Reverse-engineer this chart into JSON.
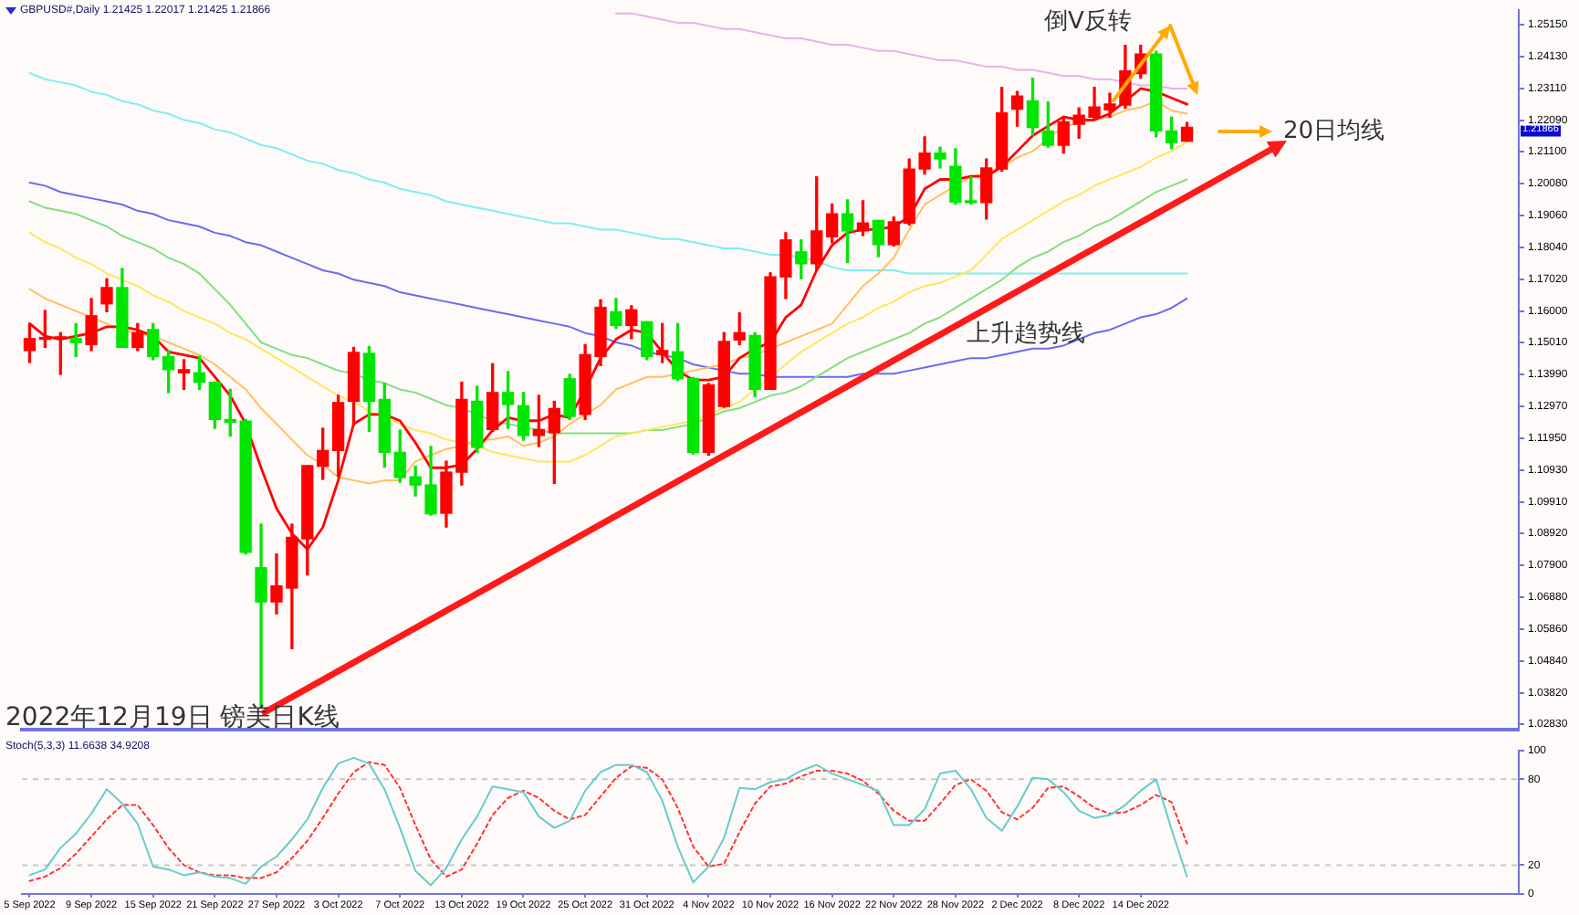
{
  "chart_data": [
    {
      "type": "candlestick",
      "title": "GBPUSD#,Daily  1.21425 1.22017 1.21425 1.21866",
      "categories": [
        null,
        null,
        null,
        null,
        null,
        null,
        null,
        null,
        null,
        null,
        null,
        null,
        null,
        null,
        null,
        null,
        null,
        null,
        null,
        null,
        null,
        null,
        null,
        null,
        null,
        null,
        null,
        null,
        null,
        null,
        null,
        null,
        null,
        null,
        null,
        null,
        null,
        null,
        null,
        null,
        null,
        null,
        null,
        null,
        null,
        null,
        null,
        null,
        null,
        null,
        null,
        null,
        null,
        null,
        null,
        null,
        null,
        null,
        null,
        null,
        null,
        null,
        null,
        null,
        null,
        null,
        null,
        null,
        null,
        null,
        null,
        null,
        null,
        null,
        null,
        null
      ],
      "ohlc": [
        [
          1.1474,
          1.156,
          1.1436,
          1.1512
        ],
        [
          1.151,
          1.1602,
          1.1484,
          1.1514
        ],
        [
          1.1512,
          1.1531,
          1.1398,
          1.1514
        ],
        [
          1.1512,
          1.156,
          1.1455,
          1.1499
        ],
        [
          1.1493,
          1.164,
          1.1474,
          1.1585
        ],
        [
          1.1623,
          1.1703,
          1.1598,
          1.1675
        ],
        [
          1.1675,
          1.1736,
          1.1484,
          1.1484
        ],
        [
          1.1484,
          1.156,
          1.1474,
          1.1531
        ],
        [
          1.1541,
          1.156,
          1.1445,
          1.1455
        ],
        [
          1.1455,
          1.1474,
          1.134,
          1.1413
        ],
        [
          1.1403,
          1.1445,
          1.135,
          1.1413
        ],
        [
          1.1403,
          1.1455,
          1.135,
          1.1373
        ],
        [
          1.1373,
          1.1373,
          1.1226,
          1.1254
        ],
        [
          1.1254,
          1.135,
          1.1201,
          1.1245
        ],
        [
          1.1249,
          1.1254,
          1.0825,
          1.083
        ],
        [
          1.0781,
          1.092,
          1.0338,
          1.0672
        ],
        [
          1.0672,
          1.0825,
          1.0634,
          1.0723
        ],
        [
          1.0716,
          1.092,
          1.0523,
          1.0878
        ],
        [
          1.0873,
          1.1107,
          1.0758,
          1.1107
        ],
        [
          1.1105,
          1.1226,
          1.1063,
          1.1155
        ],
        [
          1.1155,
          1.1331,
          1.1073,
          1.1308
        ],
        [
          1.1312,
          1.1484,
          1.1235,
          1.1468
        ],
        [
          1.1465,
          1.1487,
          1.1216,
          1.1312
        ],
        [
          1.1318,
          1.1369,
          1.1102,
          1.1149
        ],
        [
          1.1149,
          1.122,
          1.1054,
          1.1069
        ],
        [
          1.1071,
          1.1105,
          1.101,
          1.1045
        ],
        [
          1.1045,
          1.1168,
          1.0949,
          1.0953
        ],
        [
          1.0955,
          1.1121,
          1.0911,
          1.1086
        ],
        [
          1.1086,
          1.1373,
          1.1045,
          1.1318
        ],
        [
          1.1312,
          1.136,
          1.1149,
          1.1165
        ],
        [
          1.1222,
          1.1432,
          1.1216,
          1.134
        ],
        [
          1.134,
          1.1407,
          1.1226,
          1.1302
        ],
        [
          1.1298,
          1.134,
          1.1188,
          1.1203
        ],
        [
          1.1203,
          1.1331,
          1.1168,
          1.1222
        ],
        [
          1.1212,
          1.1312,
          1.105,
          1.1289
        ],
        [
          1.1384,
          1.1398,
          1.1254,
          1.1264
        ],
        [
          1.127,
          1.1493,
          1.1254,
          1.1461
        ],
        [
          1.1455,
          1.1636,
          1.1426,
          1.1612
        ],
        [
          1.1598,
          1.164,
          1.1545,
          1.1554
        ],
        [
          1.1554,
          1.1617,
          1.1512,
          1.1604
        ],
        [
          1.1566,
          1.1566,
          1.1445,
          1.1455
        ],
        [
          1.1461,
          1.156,
          1.1436,
          1.1474
        ],
        [
          1.147,
          1.156,
          1.1379,
          1.1384
        ],
        [
          1.1384,
          1.1388,
          1.1144,
          1.1149
        ],
        [
          1.1149,
          1.1369,
          1.114,
          1.1365
        ],
        [
          1.1296,
          1.1531,
          1.1293,
          1.1503
        ],
        [
          1.1508,
          1.1594,
          1.1493,
          1.1531
        ],
        [
          1.1522,
          1.1531,
          1.1327,
          1.135
        ],
        [
          1.135,
          1.1722,
          1.135,
          1.1709
        ],
        [
          1.1709,
          1.185,
          1.164,
          1.1827
        ],
        [
          1.1789,
          1.1827,
          1.1703,
          1.1751
        ],
        [
          1.1751,
          1.2028,
          1.1732,
          1.1856
        ],
        [
          1.1837,
          1.1942,
          1.1818,
          1.191
        ],
        [
          1.191,
          1.1955,
          1.1755,
          1.1856
        ],
        [
          1.1856,
          1.1952,
          1.1841,
          1.1881
        ],
        [
          1.1889,
          1.1889,
          1.1774,
          1.1812
        ],
        [
          1.1812,
          1.19,
          1.1808,
          1.1885
        ],
        [
          1.1881,
          1.2085,
          1.1875,
          1.2053
        ],
        [
          1.2053,
          1.2156,
          1.2037,
          1.2104
        ],
        [
          1.2104,
          1.2123,
          1.2057,
          1.2085
        ],
        [
          1.2062,
          1.2118,
          1.1942,
          1.1948
        ],
        [
          1.1952,
          1.2028,
          1.1942,
          1.1946
        ],
        [
          1.1946,
          1.2085,
          1.1894,
          1.2057
        ],
        [
          1.2053,
          1.2314,
          1.2047,
          1.2232
        ],
        [
          1.2244,
          1.2301,
          1.219,
          1.2286
        ],
        [
          1.2271,
          1.2343,
          1.2162,
          1.2186
        ],
        [
          1.2175,
          1.2267,
          1.2123,
          1.2129
        ],
        [
          1.2129,
          1.2219,
          1.2104,
          1.2204
        ],
        [
          1.2196,
          1.2248,
          1.2152,
          1.2225
        ],
        [
          1.2219,
          1.2314,
          1.2209,
          1.2251
        ],
        [
          1.2242,
          1.2295,
          1.2219,
          1.2261
        ],
        [
          1.2257,
          1.2448,
          1.2248,
          1.2366
        ],
        [
          1.2358,
          1.2448,
          1.2343,
          1.242
        ],
        [
          1.242,
          1.2429,
          1.2156,
          1.2175
        ],
        [
          1.2175,
          1.2219,
          1.2118,
          1.2137
        ],
        [
          1.21425,
          1.22017,
          1.21425,
          1.21866
        ]
      ],
      "colors": [
        "#ff0000",
        "#ff0000",
        "#ff0000",
        "#00e600",
        "#ff0000",
        "#ff0000",
        "#00e600",
        "#ff0000",
        "#00e600",
        "#00e600",
        "#ff0000",
        "#00e600",
        "#00e600",
        "#00e600",
        "#00e600",
        "#00e600",
        "#ff0000",
        "#ff0000",
        "#ff0000",
        "#ff0000",
        "#ff0000",
        "#ff0000",
        "#00e600",
        "#00e600",
        "#00e600",
        "#00e600",
        "#00e600",
        "#ff0000",
        "#ff0000",
        "#00e600",
        "#ff0000",
        "#00e600",
        "#00e600",
        "#ff0000",
        "#ff0000",
        "#00e600",
        "#ff0000",
        "#ff0000",
        "#00e600",
        "#ff0000",
        "#00e600",
        "#ff0000",
        "#00e600",
        "#00e600",
        "#ff0000",
        "#ff0000",
        "#ff0000",
        "#00e600",
        "#ff0000",
        "#ff0000",
        "#00e600",
        "#ff0000",
        "#ff0000",
        "#00e600",
        "#ff0000",
        "#00e600",
        "#ff0000",
        "#ff0000",
        "#ff0000",
        "#00e600",
        "#00e600",
        "#00e600",
        "#ff0000",
        "#ff0000",
        "#ff0000",
        "#00e600",
        "#00e600",
        "#ff0000",
        "#ff0000",
        "#ff0000",
        "#ff0000",
        "#ff0000",
        "#ff0000",
        "#00e600",
        "#00e600",
        "#ff0000"
      ],
      "series": [
        {
          "type": "line",
          "color": "#ff0000",
          "values": [
            1.156,
            1.152,
            1.151,
            1.152,
            1.153,
            1.155,
            1.155,
            1.154,
            1.152,
            1.147,
            1.146,
            1.145,
            1.139,
            1.133,
            1.124,
            1.11,
            1.097,
            1.089,
            1.084,
            1.091,
            1.106,
            1.124,
            1.127,
            1.127,
            1.125,
            1.118,
            1.11,
            1.11,
            1.111,
            1.116,
            1.122,
            1.126,
            1.125,
            1.125,
            1.127,
            1.126,
            1.135,
            1.145,
            1.151,
            1.154,
            1.153,
            1.147,
            1.141,
            1.138,
            1.138,
            1.139,
            1.145,
            1.148,
            1.15,
            1.158,
            1.162,
            1.173,
            1.181,
            1.185,
            1.186,
            1.186,
            1.187,
            1.19,
            1.199,
            1.202,
            1.202,
            1.203,
            1.203,
            1.206,
            1.211,
            1.216,
            1.219,
            1.222,
            1.221,
            1.221,
            1.223,
            1.227,
            1.231,
            1.23,
            1.228,
            1.226
          ]
        },
        {
          "type": "line",
          "color": "#ffc060",
          "values": [
            1.167,
            1.164,
            1.162,
            1.16,
            1.158,
            1.156,
            1.154,
            1.153,
            1.152,
            1.15,
            1.148,
            1.146,
            1.143,
            1.139,
            1.135,
            1.129,
            1.124,
            1.119,
            1.114,
            1.111,
            1.107,
            1.106,
            1.105,
            1.106,
            1.106,
            1.112,
            1.114,
            1.116,
            1.117,
            1.119,
            1.119,
            1.12,
            1.117,
            1.118,
            1.12,
            1.124,
            1.127,
            1.13,
            1.135,
            1.137,
            1.139,
            1.139,
            1.14,
            1.141,
            1.142,
            1.143,
            1.145,
            1.146,
            1.148,
            1.15,
            1.152,
            1.154,
            1.156,
            1.162,
            1.168,
            1.172,
            1.177,
            1.186,
            1.194,
            1.197,
            1.2,
            1.203,
            1.204,
            1.206,
            1.209,
            1.211,
            1.215,
            1.219,
            1.22,
            1.221,
            1.222,
            1.224,
            1.225,
            1.227,
            1.224,
            1.223
          ]
        },
        {
          "type": "line",
          "color": "#ffe65c",
          "values": [
            1.185,
            1.182,
            1.18,
            1.177,
            1.175,
            1.172,
            1.17,
            1.168,
            1.165,
            1.163,
            1.16,
            1.158,
            1.156,
            1.153,
            1.151,
            1.148,
            1.145,
            1.142,
            1.139,
            1.136,
            1.133,
            1.131,
            1.128,
            1.126,
            1.124,
            1.122,
            1.121,
            1.119,
            1.118,
            1.117,
            1.115,
            1.114,
            1.113,
            1.112,
            1.112,
            1.112,
            1.114,
            1.117,
            1.12,
            1.121,
            1.122,
            1.123,
            1.124,
            1.125,
            1.127,
            1.129,
            1.131,
            1.135,
            1.139,
            1.143,
            1.147,
            1.15,
            1.153,
            1.156,
            1.158,
            1.161,
            1.163,
            1.166,
            1.168,
            1.169,
            1.171,
            1.173,
            1.178,
            1.183,
            1.186,
            1.189,
            1.192,
            1.195,
            1.197,
            1.2,
            1.202,
            1.204,
            1.206,
            1.209,
            1.211,
            1.214
          ]
        },
        {
          "type": "line",
          "color": "#80e080",
          "values": [
            1.195,
            1.193,
            1.192,
            1.191,
            1.189,
            1.187,
            1.184,
            1.182,
            1.18,
            1.177,
            1.175,
            1.172,
            1.167,
            1.162,
            1.156,
            1.15,
            1.148,
            1.146,
            1.145,
            1.143,
            1.141,
            1.14,
            1.138,
            1.137,
            1.135,
            1.134,
            1.132,
            1.13,
            1.129,
            1.127,
            1.125,
            1.124,
            1.123,
            1.122,
            1.121,
            1.121,
            1.121,
            1.121,
            1.121,
            1.121,
            1.122,
            1.122,
            1.123,
            1.124,
            1.126,
            1.128,
            1.129,
            1.131,
            1.133,
            1.134,
            1.136,
            1.139,
            1.142,
            1.145,
            1.147,
            1.149,
            1.151,
            1.153,
            1.156,
            1.158,
            1.161,
            1.164,
            1.167,
            1.17,
            1.174,
            1.177,
            1.179,
            1.182,
            1.184,
            1.187,
            1.189,
            1.192,
            1.195,
            1.198,
            1.2,
            1.202
          ]
        },
        {
          "type": "line",
          "color": "#6b6bf0",
          "values": [
            1.201,
            1.2,
            1.198,
            1.197,
            1.196,
            1.195,
            1.194,
            1.192,
            1.191,
            1.189,
            1.188,
            1.187,
            1.185,
            1.184,
            1.182,
            1.181,
            1.179,
            1.177,
            1.175,
            1.173,
            1.172,
            1.17,
            1.169,
            1.168,
            1.166,
            1.165,
            1.164,
            1.163,
            1.162,
            1.161,
            1.16,
            1.159,
            1.158,
            1.157,
            1.156,
            1.155,
            1.153,
            1.152,
            1.15,
            1.149,
            1.147,
            1.146,
            1.145,
            1.143,
            1.142,
            1.141,
            1.14,
            1.14,
            1.139,
            1.139,
            1.139,
            1.139,
            1.139,
            1.139,
            1.14,
            1.14,
            1.14,
            1.141,
            1.142,
            1.143,
            1.144,
            1.145,
            1.145,
            1.146,
            1.147,
            1.148,
            1.148,
            1.149,
            1.151,
            1.153,
            1.154,
            1.156,
            1.158,
            1.159,
            1.161,
            1.164
          ]
        },
        {
          "type": "line",
          "color": "#80eeee",
          "values": [
            1.236,
            1.234,
            1.233,
            1.232,
            1.23,
            1.229,
            1.227,
            1.226,
            1.224,
            1.223,
            1.221,
            1.22,
            1.218,
            1.217,
            1.215,
            1.213,
            1.212,
            1.21,
            1.208,
            1.207,
            1.205,
            1.204,
            1.202,
            1.201,
            1.199,
            1.198,
            1.197,
            1.195,
            1.194,
            1.193,
            1.192,
            1.191,
            1.19,
            1.189,
            1.188,
            1.188,
            1.187,
            1.186,
            1.186,
            1.185,
            1.184,
            1.183,
            1.183,
            1.182,
            1.181,
            1.18,
            1.18,
            1.179,
            1.178,
            1.178,
            1.177,
            1.176,
            1.174,
            1.173,
            1.173,
            1.173,
            1.173,
            1.172,
            1.172,
            1.172,
            1.172,
            1.172,
            1.172,
            1.172,
            1.172,
            1.172,
            1.172,
            1.172,
            1.172,
            1.172,
            1.172,
            1.172,
            1.172,
            1.172,
            1.172,
            1.172
          ]
        },
        {
          "type": "line",
          "color": "#e6b3e6",
          "values": [
            null,
            null,
            null,
            null,
            null,
            null,
            null,
            null,
            null,
            null,
            null,
            null,
            null,
            null,
            null,
            null,
            null,
            null,
            null,
            null,
            null,
            null,
            null,
            null,
            null,
            null,
            null,
            null,
            null,
            null,
            null,
            null,
            null,
            null,
            null,
            null,
            null,
            null,
            1.255,
            1.255,
            1.254,
            1.253,
            1.252,
            1.252,
            1.251,
            1.25,
            1.25,
            1.249,
            1.248,
            1.247,
            1.247,
            1.246,
            1.245,
            1.245,
            1.244,
            1.243,
            1.243,
            1.242,
            1.241,
            1.24,
            1.24,
            1.239,
            1.238,
            1.238,
            1.237,
            1.237,
            1.236,
            1.235,
            1.235,
            1.234,
            1.234,
            1.233,
            1.232,
            1.232,
            1.231,
            1.231
          ]
        }
      ],
      "ylim": [
        1.0265,
        1.256
      ],
      "yticks": [
        {
          "value": 1.2515,
          "label": "1.25150"
        },
        {
          "value": 1.2413,
          "label": "1.24130"
        },
        {
          "value": 1.2311,
          "label": "1.23110"
        },
        {
          "value": 1.2209,
          "label": "1.22090"
        },
        {
          "value": 1.211,
          "label": "1.21100"
        },
        {
          "value": 1.2008,
          "label": "1.20080"
        },
        {
          "value": 1.1906,
          "label": "1.19060"
        },
        {
          "value": 1.1804,
          "label": "1.18040"
        },
        {
          "value": 1.1702,
          "label": "1.17020"
        },
        {
          "value": 1.16,
          "label": "1.16000"
        },
        {
          "value": 1.1501,
          "label": "1.15010"
        },
        {
          "value": 1.1399,
          "label": "1.13990"
        },
        {
          "value": 1.1297,
          "label": "1.12970"
        },
        {
          "value": 1.1195,
          "label": "1.11950"
        },
        {
          "value": 1.1093,
          "label": "1.10930"
        },
        {
          "value": 1.0991,
          "label": "1.09910"
        },
        {
          "value": 1.0892,
          "label": "1.08920"
        },
        {
          "value": 1.079,
          "label": "1.07900"
        },
        {
          "value": 1.0688,
          "label": "1.06880"
        },
        {
          "value": 1.0586,
          "label": "1.05860"
        },
        {
          "value": 1.0484,
          "label": "1.04840"
        },
        {
          "value": 1.0382,
          "label": "1.03820"
        },
        {
          "value": 1.0283,
          "label": "1.02830"
        }
      ],
      "tick_labels": "y",
      "grid": false,
      "legend": false,
      "annotations": [
        "倒V反转",
        "20日均线",
        "上升趋势线",
        "2022年12月19日 镑美日K线",
        "1.21866"
      ]
    },
    {
      "type": "line",
      "title": "Stoch(5,3,3) 11.6638 34.9208",
      "categories": [
        "5 Sep 2022",
        null,
        null,
        null,
        "9 Sep 2022",
        null,
        null,
        null,
        "15 Sep 2022",
        null,
        null,
        null,
        "21 Sep 2022",
        null,
        null,
        null,
        "27 Sep 2022",
        null,
        null,
        null,
        "3 Oct 2022",
        null,
        null,
        null,
        "7 Oct 2022",
        null,
        null,
        null,
        "13 Oct 2022",
        null,
        null,
        null,
        "19 Oct 2022",
        null,
        null,
        null,
        "25 Oct 2022",
        null,
        null,
        null,
        "31 Oct 2022",
        null,
        null,
        null,
        "4 Nov 2022",
        null,
        null,
        null,
        "10 Nov 2022",
        null,
        null,
        null,
        "16 Nov 2022",
        null,
        null,
        null,
        "22 Nov 2022",
        null,
        null,
        null,
        "28 Nov 2022",
        null,
        null,
        null,
        "2 Dec 2022",
        null,
        null,
        null,
        "8 Dec 2022",
        null,
        null,
        null,
        "14 Dec 2022",
        null,
        null,
        null
      ],
      "series": [
        {
          "color": "#66cccc",
          "values": [
            13,
            17,
            32,
            42,
            56,
            73,
            63,
            49,
            19,
            17,
            13,
            15,
            12,
            11,
            7,
            19,
            26,
            38,
            52,
            74,
            91,
            95,
            91,
            73,
            46,
            16,
            6,
            18,
            38,
            54,
            75,
            73,
            71,
            54,
            46,
            51,
            72,
            85,
            90,
            90,
            85,
            65,
            33,
            8,
            19,
            39,
            74,
            73,
            78,
            80,
            86,
            90,
            84,
            80,
            76,
            72,
            48,
            48,
            59,
            84,
            86,
            73,
            53,
            44,
            61,
            81,
            80,
            71,
            58,
            53,
            55,
            62,
            72,
            80,
            45,
            12
          ]
        },
        {
          "color": "#ff3333",
          "line_style": "dotted",
          "values": [
            9,
            12,
            18,
            28,
            40,
            52,
            62,
            62,
            48,
            32,
            20,
            15,
            13,
            13,
            11,
            11,
            15,
            25,
            37,
            53,
            70,
            85,
            92,
            90,
            74,
            48,
            24,
            12,
            17,
            35,
            55,
            67,
            72,
            67,
            58,
            52,
            55,
            68,
            81,
            89,
            88,
            80,
            60,
            33,
            19,
            21,
            43,
            63,
            75,
            77,
            82,
            86,
            86,
            84,
            79,
            70,
            58,
            51,
            51,
            63,
            76,
            80,
            72,
            57,
            52,
            60,
            74,
            75,
            68,
            60,
            56,
            57,
            62,
            69,
            64,
            35
          ]
        }
      ],
      "ylim": [
        0,
        100
      ],
      "yticks": [
        0,
        20,
        80,
        100
      ],
      "ref_lines": [
        {
          "axis": "y",
          "value": 20,
          "color": "#c8c8c8",
          "line_style": "dashed"
        },
        {
          "axis": "y",
          "value": 80,
          "color": "#c8c8c8",
          "line_style": "dashed"
        }
      ],
      "grid": false,
      "legend": false
    }
  ]
}
